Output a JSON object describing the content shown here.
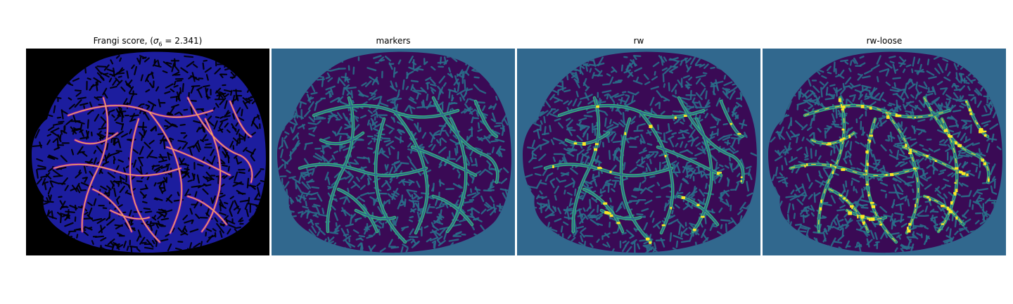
{
  "figure": {
    "panels": [
      {
        "id": "frangi",
        "title_prefix": "Frangi score, (",
        "title_sigma": "σ",
        "title_sub": "6",
        "title_suffix": " = 2.341)",
        "colormap": "plasma",
        "colors": {
          "background": "#000000",
          "tissue": "#1c1d9e",
          "vessel_lo": "#8c1bb0",
          "vessel_hi": "#f7b058",
          "hole": "#000000"
        }
      },
      {
        "id": "markers",
        "title": "markers",
        "colormap": "viridis",
        "colors": {
          "background": "#31688e",
          "tissue": "#3a0a55",
          "texture": "#2a6e8a",
          "vessel_outline": "#35b779",
          "vessel_fill": "#31688e"
        }
      },
      {
        "id": "rw",
        "title": "rw",
        "colormap": "viridis",
        "colors": {
          "background": "#31688e",
          "tissue": "#3a0a55",
          "texture": "#2a6e8a",
          "vessel_outline": "#35b779",
          "vessel_fill": "#31688e",
          "highlight": "#fde725"
        }
      },
      {
        "id": "rw-loose",
        "title": "rw-loose",
        "colormap": "viridis",
        "colors": {
          "background": "#31688e",
          "tissue": "#3a0a55",
          "texture": "#2a6e8a",
          "vessel_outline": "#35b779",
          "vessel_fill": "#31688e",
          "highlight": "#fde725"
        }
      }
    ]
  }
}
